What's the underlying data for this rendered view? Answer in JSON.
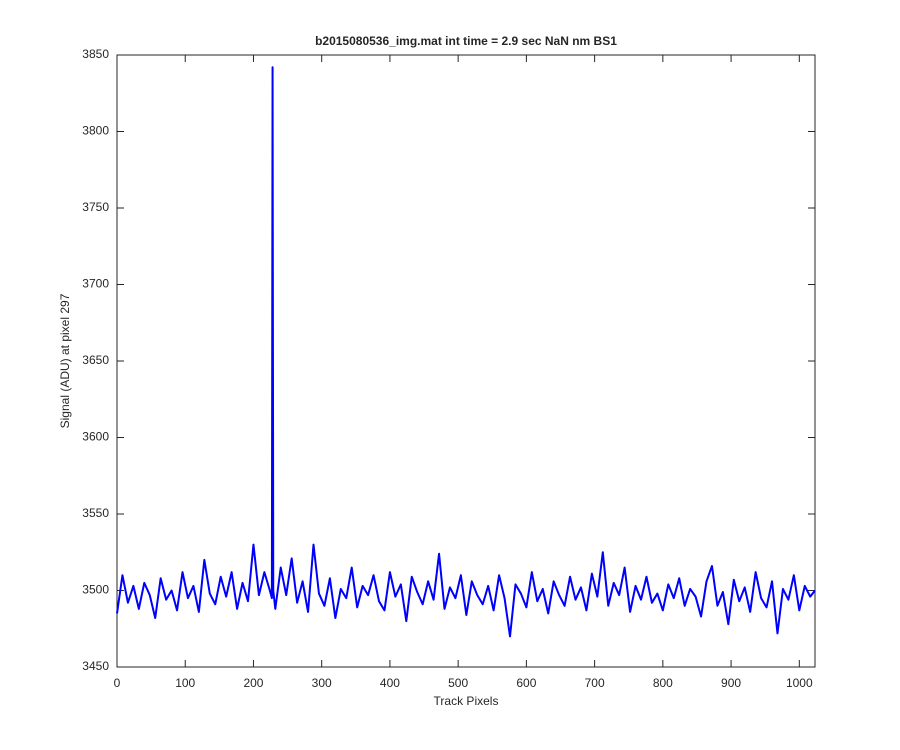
{
  "chart_data": {
    "type": "line",
    "title": "b2015080536_img.mat int time = 2.9 sec  NaN nm BS1",
    "x_label": "Track Pixels",
    "y_label": "Signal (ADU) at pixel 297",
    "x": [
      0,
      8,
      16,
      24,
      32,
      40,
      48,
      56,
      64,
      72,
      80,
      88,
      96,
      104,
      112,
      120,
      128,
      136,
      144,
      152,
      160,
      168,
      176,
      184,
      192,
      200,
      208,
      216,
      224,
      227,
      228,
      229,
      232,
      240,
      248,
      256,
      264,
      272,
      280,
      288,
      296,
      304,
      312,
      320,
      328,
      336,
      344,
      352,
      360,
      368,
      376,
      384,
      392,
      400,
      408,
      416,
      424,
      432,
      440,
      448,
      456,
      464,
      472,
      480,
      488,
      496,
      504,
      512,
      520,
      528,
      536,
      544,
      552,
      560,
      568,
      576,
      584,
      592,
      600,
      608,
      616,
      624,
      632,
      640,
      648,
      656,
      664,
      672,
      680,
      688,
      696,
      704,
      712,
      720,
      728,
      736,
      744,
      752,
      760,
      768,
      776,
      784,
      792,
      800,
      808,
      816,
      824,
      832,
      840,
      848,
      856,
      864,
      872,
      880,
      888,
      896,
      904,
      912,
      920,
      928,
      936,
      944,
      952,
      960,
      968,
      976,
      984,
      992,
      1000,
      1008,
      1016,
      1023
    ],
    "series": [
      {
        "name": "signal",
        "color": "#0000ff",
        "values": [
          3485,
          3510,
          3492,
          3503,
          3488,
          3505,
          3497,
          3482,
          3508,
          3494,
          3500,
          3487,
          3512,
          3495,
          3503,
          3486,
          3520,
          3498,
          3491,
          3509,
          3496,
          3512,
          3488,
          3505,
          3493,
          3530,
          3497,
          3512,
          3500,
          3495,
          3842,
          3500,
          3488,
          3515,
          3497,
          3521,
          3492,
          3506,
          3486,
          3530,
          3498,
          3490,
          3508,
          3482,
          3501,
          3495,
          3515,
          3489,
          3503,
          3497,
          3510,
          3493,
          3487,
          3512,
          3496,
          3504,
          3480,
          3509,
          3499,
          3491,
          3506,
          3494,
          3524,
          3488,
          3502,
          3495,
          3510,
          3484,
          3506,
          3497,
          3491,
          3503,
          3487,
          3510,
          3495,
          3470,
          3504,
          3498,
          3489,
          3512,
          3493,
          3501,
          3485,
          3506,
          3497,
          3490,
          3509,
          3494,
          3502,
          3487,
          3511,
          3496,
          3525,
          3490,
          3505,
          3497,
          3515,
          3486,
          3503,
          3494,
          3509,
          3492,
          3498,
          3487,
          3504,
          3495,
          3508,
          3490,
          3501,
          3496,
          3483,
          3506,
          3516,
          3490,
          3499,
          3478,
          3507,
          3493,
          3502,
          3486,
          3512,
          3495,
          3489,
          3506,
          3472,
          3501,
          3494,
          3510,
          3487,
          3503,
          3496,
          3500
        ]
      }
    ],
    "xlim": [
      0,
      1023
    ],
    "xticks": [
      0,
      100,
      200,
      300,
      400,
      500,
      600,
      700,
      800,
      900,
      1000
    ],
    "ylim": [
      3450,
      3850
    ],
    "yticks": [
      3450,
      3500,
      3550,
      3600,
      3650,
      3700,
      3750,
      3800,
      3850
    ]
  }
}
